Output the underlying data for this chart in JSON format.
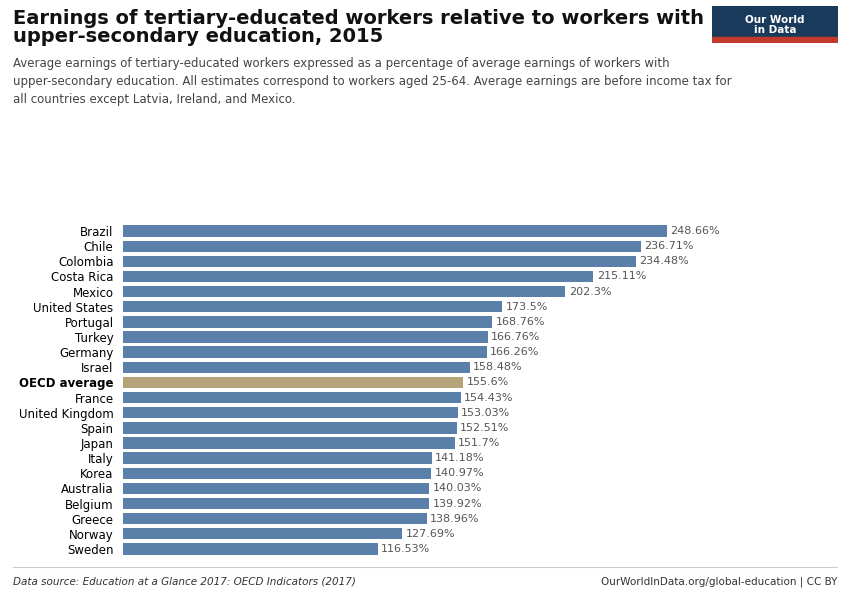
{
  "title_line1": "Earnings of tertiary-educated workers relative to workers with",
  "title_line2": "upper-secondary education, 2015",
  "subtitle": "Average earnings of tertiary-educated workers expressed as a percentage of average earnings of workers with\nupper-secondary education. All estimates correspond to workers aged 25-64. Average earnings are before income tax for\nall countries except Latvia, Ireland, and Mexico.",
  "datasource": "Data source: Education at a Glance 2017: OECD Indicators (2017)",
  "website": "OurWorldInData.org/global-education | CC BY",
  "categories": [
    "Sweden",
    "Norway",
    "Greece",
    "Belgium",
    "Australia",
    "Korea",
    "Italy",
    "Japan",
    "Spain",
    "United Kingdom",
    "France",
    "OECD average",
    "Israel",
    "Germany",
    "Turkey",
    "Portugal",
    "United States",
    "Mexico",
    "Costa Rica",
    "Colombia",
    "Chile",
    "Brazil"
  ],
  "values": [
    116.53,
    127.69,
    138.96,
    139.92,
    140.03,
    140.97,
    141.18,
    151.7,
    152.51,
    153.03,
    154.43,
    155.6,
    158.48,
    166.26,
    166.76,
    168.76,
    173.5,
    202.3,
    215.11,
    234.48,
    236.71,
    248.66
  ],
  "labels": [
    "116.53%",
    "127.69%",
    "138.96%",
    "139.92%",
    "140.03%",
    "140.97%",
    "141.18%",
    "151.7%",
    "152.51%",
    "153.03%",
    "154.43%",
    "155.6%",
    "158.48%",
    "166.26%",
    "166.76%",
    "168.76%",
    "173.5%",
    "202.3%",
    "215.11%",
    "234.48%",
    "236.71%",
    "248.66%"
  ],
  "bar_color_default": "#5a7fa8",
  "bar_color_oecd": "#b5a47a",
  "oecd_index": 11,
  "bold_categories": [
    "OECD average"
  ],
  "background_color": "#ffffff",
  "title_fontsize": 14,
  "subtitle_fontsize": 8.5,
  "label_fontsize": 8,
  "category_fontsize": 8.5,
  "datasource_fontsize": 7.5,
  "xlim": [
    0,
    280
  ],
  "logo_bg": "#1a3a5c",
  "logo_red": "#c0392b",
  "logo_text": "Our World\nin Data"
}
